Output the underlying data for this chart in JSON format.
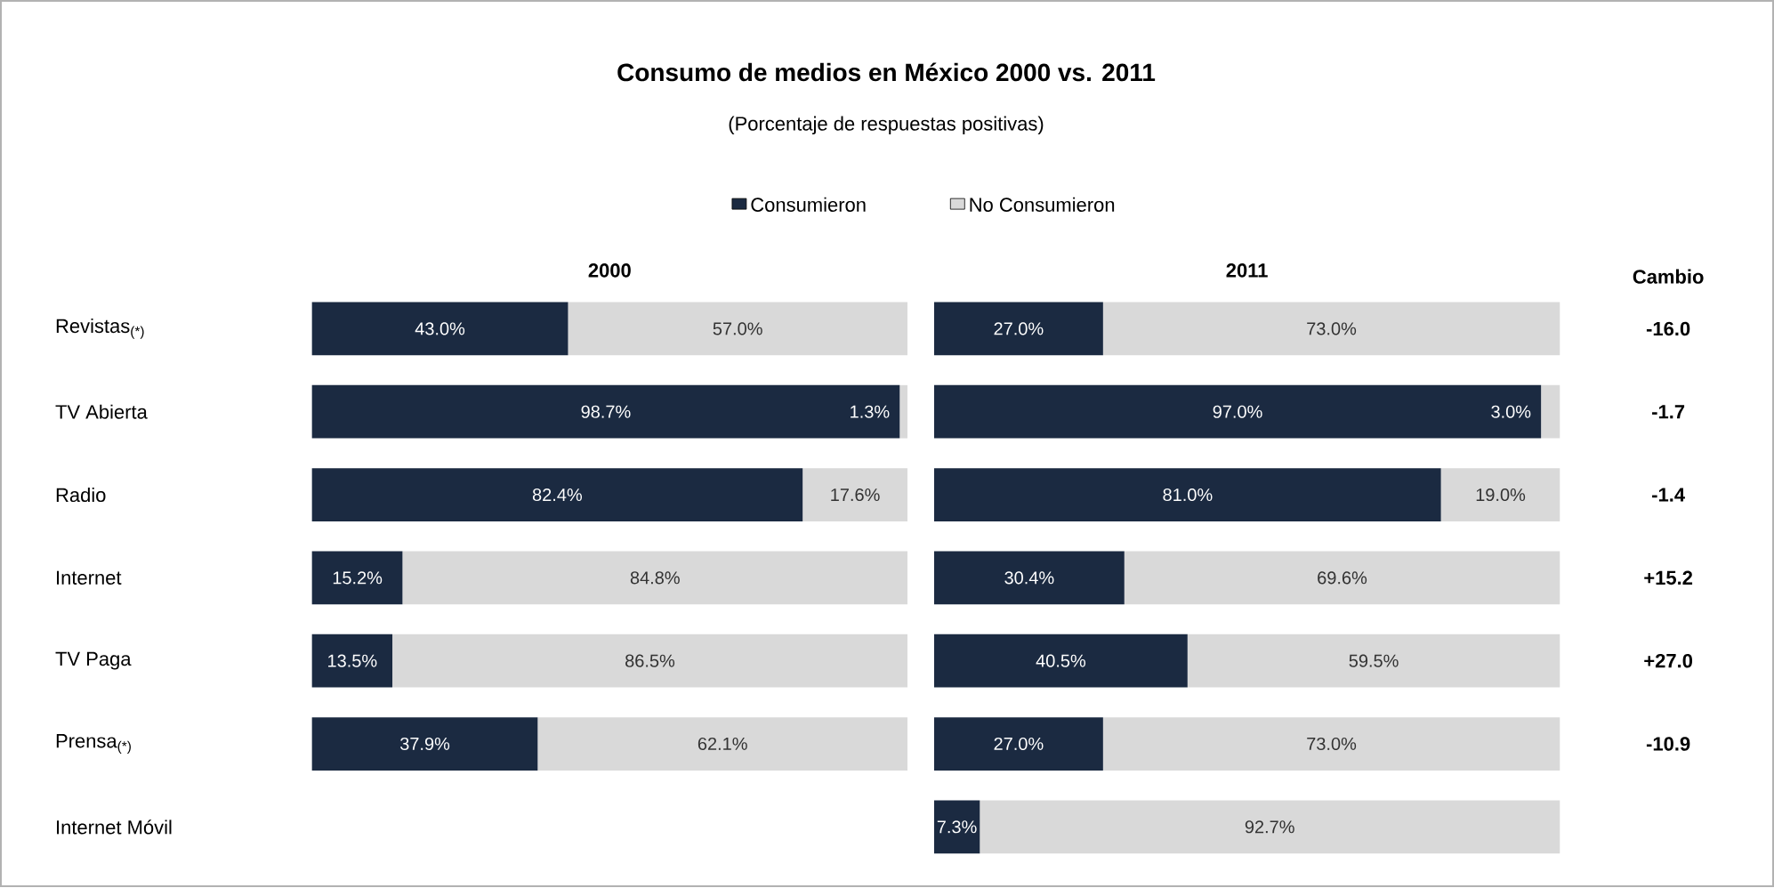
{
  "chart_data": [
    {
      "type": "bar",
      "orientation": "horizontal",
      "stacked": true,
      "title": "Consumo de medios en México 2000 vs. 2011",
      "subtitle": "(Porcentaje de respuestas positivas)",
      "xlabel": "2000",
      "categories": [
        "Revistas$_{(*)}$",
        "TV Abierta",
        "Radio",
        "Internet",
        "TV Paga",
        "Prensa$_{(*)}$",
        "Internet Móvil"
      ],
      "xlim": [
        0,
        100
      ],
      "tick_labels": "y",
      "legend": "top",
      "series": [
        {
          "name": "Consumieron",
          "color": "#1b2a41",
          "values": [
            43.0,
            98.7,
            82.4,
            15.2,
            13.5,
            37.9,
            null
          ],
          "value_labels": [
            "43.0%",
            "98.7%",
            "82.4%",
            "15.2%",
            "13.5%",
            "37.9%",
            null
          ]
        },
        {
          "name": "No Consumieron",
          "color": "#d9d9d9",
          "values": [
            57.0,
            1.3,
            17.6,
            84.8,
            86.5,
            62.1,
            null
          ],
          "value_labels": [
            "57.0%",
            "1.3%",
            "17.6%",
            "84.8%",
            "86.5%",
            "62.1%",
            null
          ]
        }
      ]
    },
    {
      "type": "bar",
      "orientation": "horizontal",
      "stacked": true,
      "xlabel": "2011",
      "categories": [
        null,
        null,
        null,
        null,
        null,
        null,
        null
      ],
      "xlim": [
        0,
        100
      ],
      "tick_labels": false,
      "series": [
        {
          "color": "#1b2a41",
          "values": [
            27.0,
            97.0,
            81.0,
            30.4,
            40.5,
            27.0,
            7.3
          ],
          "value_labels": [
            "27.0%",
            "97.0%",
            "81.0%",
            "30.4%",
            "40.5%",
            "27.0%",
            "7.3%"
          ]
        },
        {
          "color": "#d9d9d9",
          "values": [
            73.0,
            3.0,
            19.0,
            69.6,
            59.5,
            73.0,
            92.7
          ],
          "value_labels": [
            "73.0%",
            "3.0%",
            "19.0%",
            "69.6%",
            "59.5%",
            "73.0%",
            "92.7%"
          ]
        }
      ]
    },
    {
      "type": "other",
      "title": "Cambio",
      "annotations": [
        "-16.0",
        "-1.7",
        "-1.4",
        "+15.2",
        "+27.0",
        "-10.9"
      ]
    }
  ]
}
